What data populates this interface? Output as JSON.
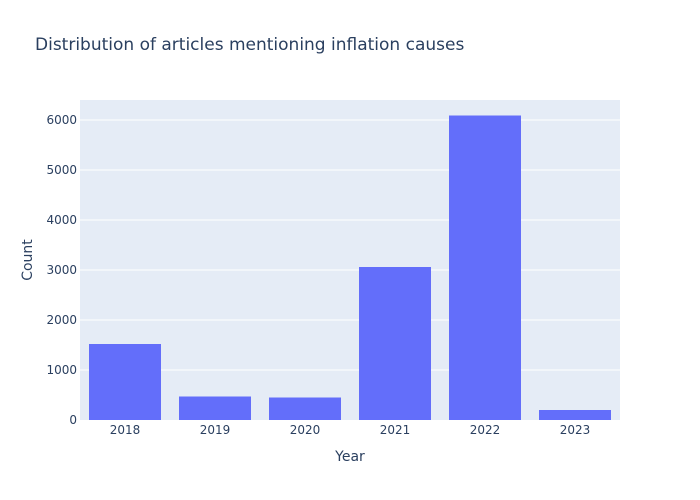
{
  "chart_data": {
    "type": "bar",
    "title": "Distribution of articles mentioning inflation causes",
    "xlabel": "Year",
    "ylabel": "Count",
    "categories": [
      "2018",
      "2019",
      "2020",
      "2021",
      "2022",
      "2023"
    ],
    "values": [
      1520,
      470,
      450,
      3060,
      6090,
      200
    ],
    "ylim": [
      0,
      6400
    ],
    "yticks": [
      0,
      1000,
      2000,
      3000,
      4000,
      5000,
      6000
    ],
    "grid": true,
    "colors": {
      "bar": "#636efa",
      "plot_background": "#e5ecf6",
      "gridline": "#ffffff",
      "text": "#2a3f5f"
    }
  }
}
